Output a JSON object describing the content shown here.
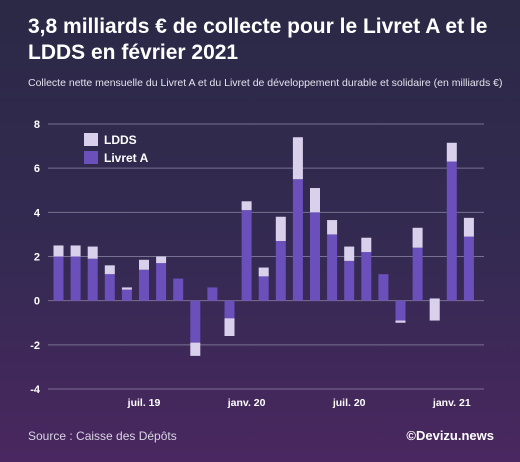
{
  "title": "3,8 milliards € de collecte pour le Livret A et le LDDS en février 2021",
  "subtitle": "Collecte nette mensuelle du Livret A et du Livret de développement durable et solidaire (en milliards €)",
  "source": "Source : Caisse des Dépôts",
  "brand": "©Devizu.news",
  "colors": {
    "livret_a": "#6b4fbb",
    "ldds": "#d9d1ec",
    "grid": "#8e8aa6",
    "tick_text": "#ffffff"
  },
  "chart_data": {
    "type": "bar",
    "stacked": true,
    "categories": [
      "2019-02",
      "2019-03",
      "2019-04",
      "2019-05",
      "2019-06",
      "2019-07",
      "2019-08",
      "2019-09",
      "2019-10",
      "2019-11",
      "2019-12",
      "2020-01",
      "2020-02",
      "2020-03",
      "2020-04",
      "2020-05",
      "2020-06",
      "2020-07",
      "2020-08",
      "2020-09",
      "2020-10",
      "2020-11",
      "2020-12",
      "2021-01",
      "2021-02"
    ],
    "series": [
      {
        "name": "Livret A",
        "values": [
          2.0,
          2.0,
          1.9,
          1.2,
          0.5,
          1.4,
          1.7,
          1.0,
          -1.9,
          0.6,
          -1.6,
          4.1,
          1.1,
          2.7,
          5.5,
          4.0,
          3.0,
          1.8,
          2.2,
          1.2,
          -0.9,
          2.4,
          -0.9,
          6.3,
          2.9
        ]
      },
      {
        "name": "LDDS",
        "values": [
          0.5,
          0.5,
          0.55,
          0.4,
          0.1,
          0.45,
          0.3,
          0.0,
          -0.6,
          0.0,
          0.8,
          0.4,
          0.4,
          1.1,
          1.9,
          1.1,
          0.65,
          0.65,
          0.65,
          0.0,
          -0.1,
          0.9,
          1.0,
          0.85,
          0.85
        ]
      }
    ],
    "x_tick_labels": [
      {
        "index": 5,
        "label": "juil. 19"
      },
      {
        "index": 11,
        "label": "janv. 20"
      },
      {
        "index": 17,
        "label": "juil. 20"
      },
      {
        "index": 23,
        "label": "janv. 21"
      }
    ],
    "y_ticks": [
      "8",
      "6",
      "4",
      "2",
      "0",
      "-2",
      "-4"
    ],
    "ylim": [
      -4,
      8
    ],
    "grid": true,
    "legend": {
      "position": "top-left",
      "entries": [
        "LDDS",
        "Livret A"
      ]
    },
    "title": "3,8 milliards € de collecte pour le Livret A et le LDDS en février 2021",
    "xlabel": "",
    "ylabel": ""
  }
}
